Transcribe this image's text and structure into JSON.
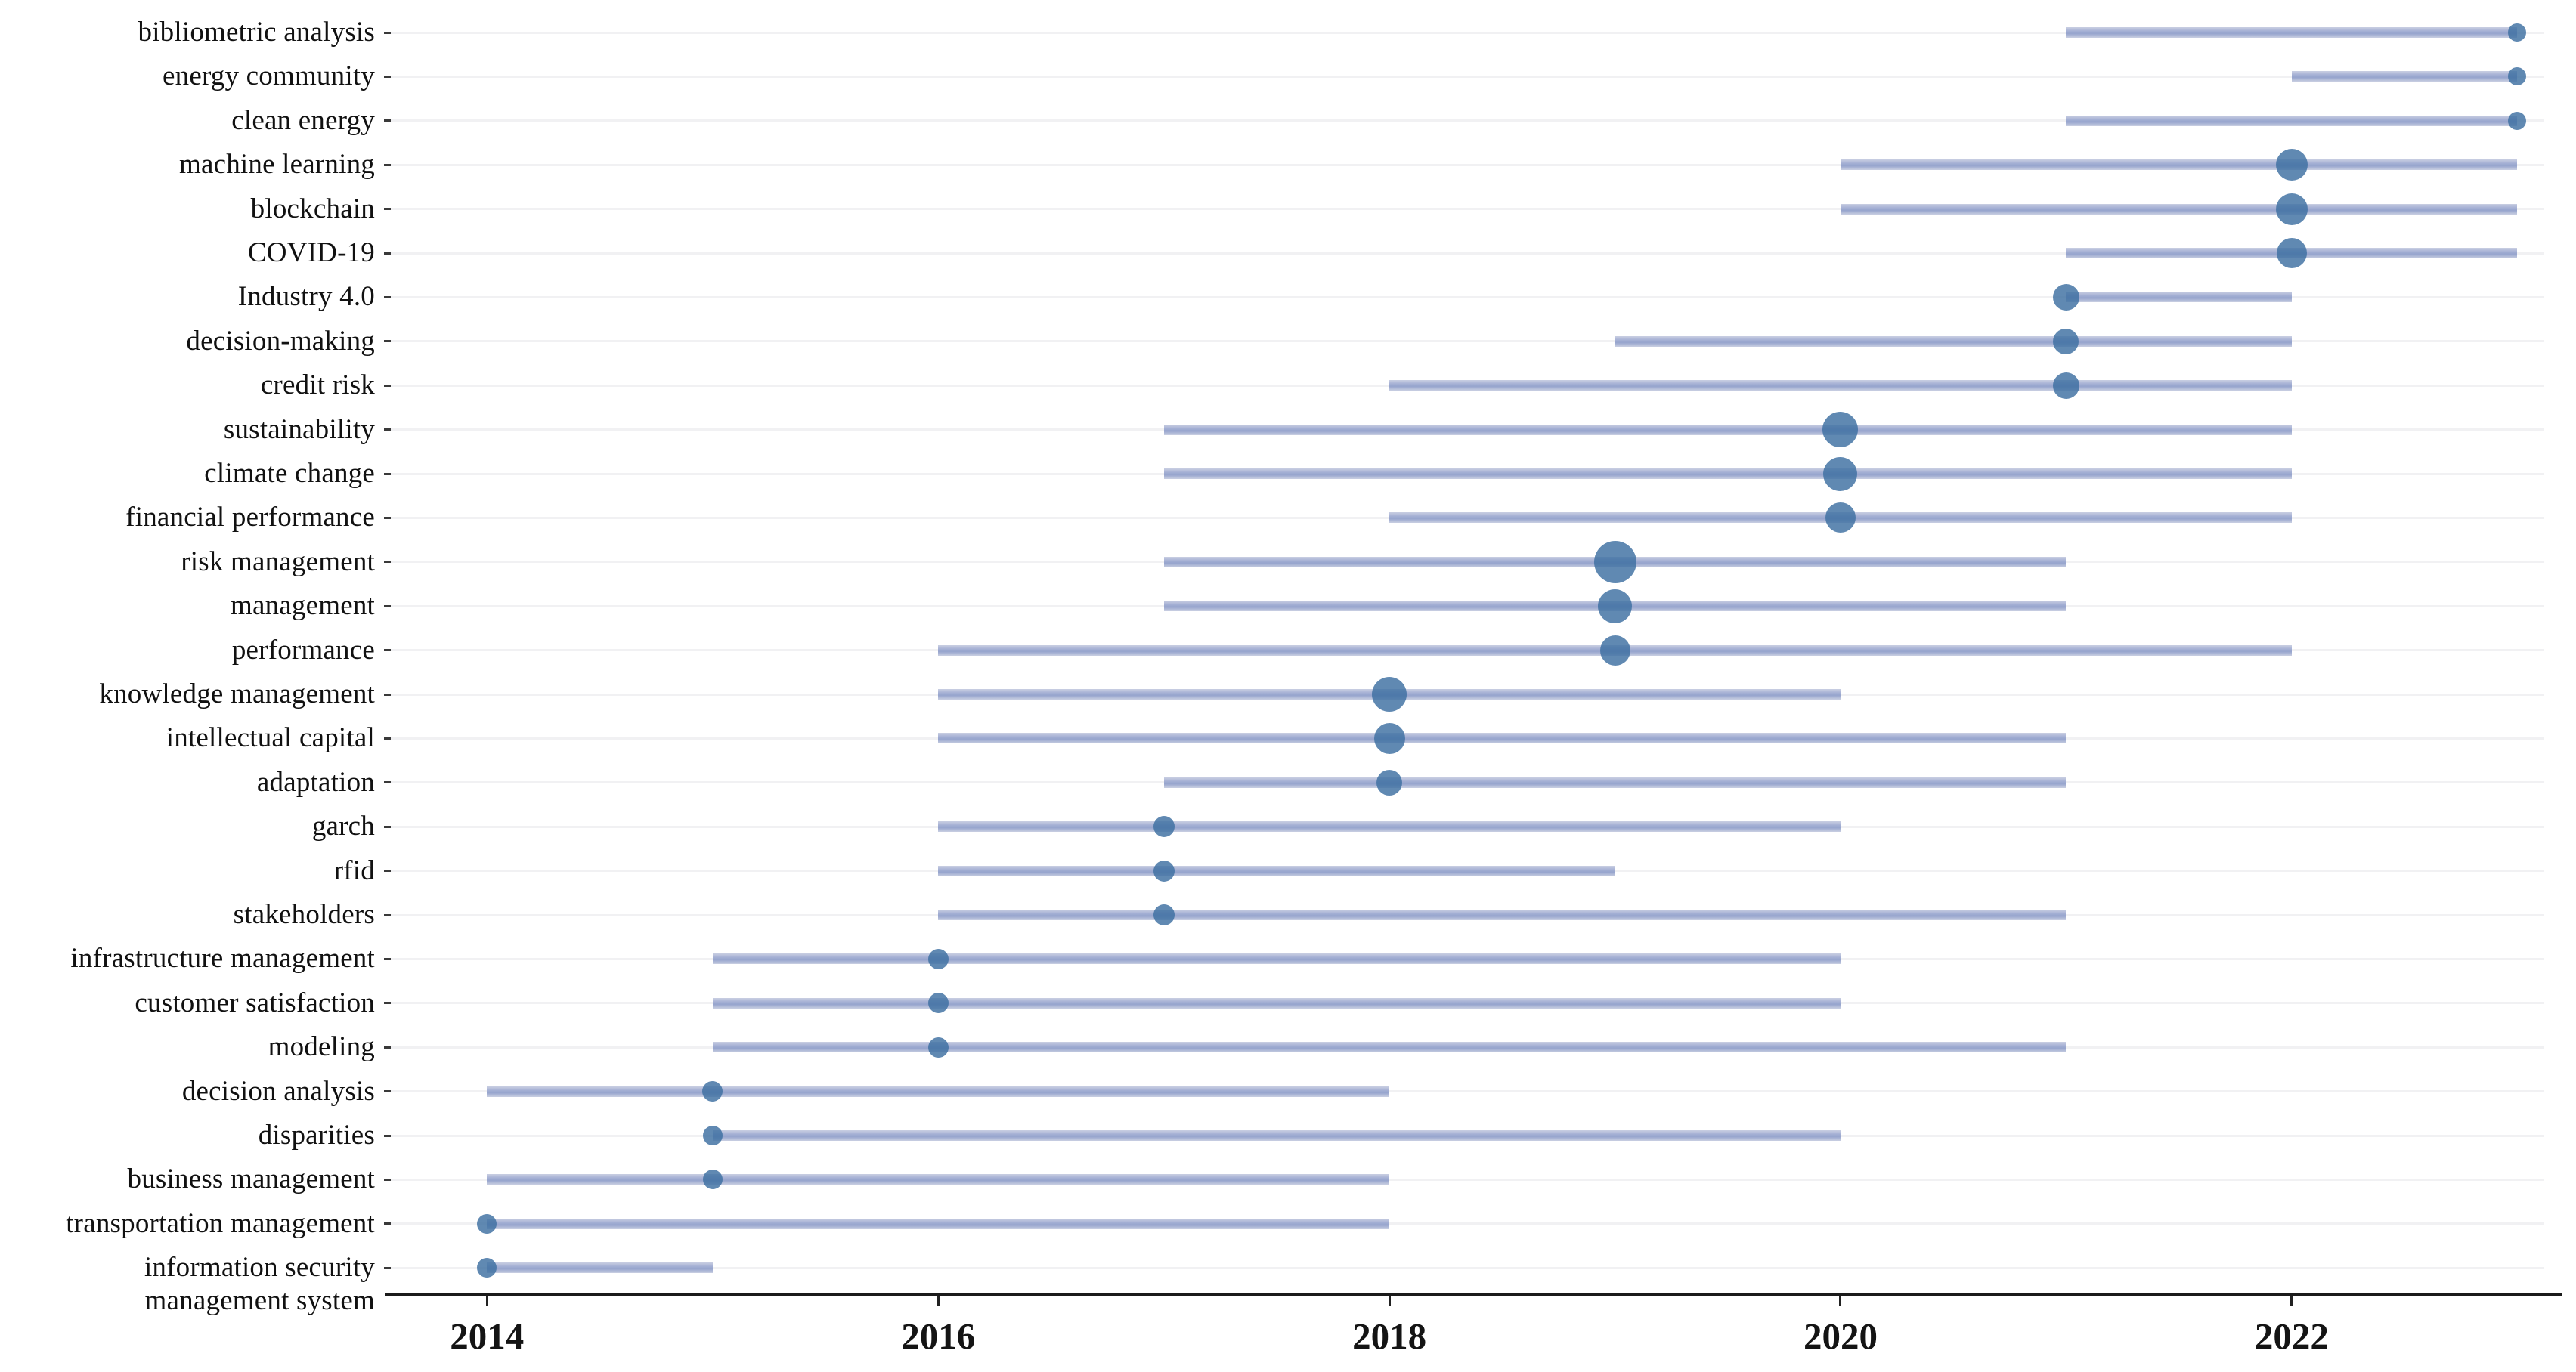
{
  "chart_data": {
    "type": "scatter",
    "variant": "trend-topics-range-dot",
    "title": "",
    "xlabel": "",
    "ylabel": "",
    "grid": "horizontal",
    "legend_position": "none",
    "x_axis": {
      "tick_years": [
        2014,
        2016,
        2018,
        2020,
        2022
      ],
      "domain": [
        2013.55,
        2023.2
      ]
    },
    "colors": {
      "range_bar": "#9fadd2",
      "dot": "#3d6fa1",
      "dot_opacity": "0.82",
      "gridline": "#f1f1f3",
      "axis": "#1b1b1b",
      "text": "#111111"
    },
    "terms": [
      {
        "label": "bibliometric analysis",
        "start": 2021,
        "peak": 2023,
        "end": 2023,
        "size": 24
      },
      {
        "label": "energy community",
        "start": 2022,
        "peak": 2023,
        "end": 2023,
        "size": 24
      },
      {
        "label": "clean energy",
        "start": 2021,
        "peak": 2023,
        "end": 2023,
        "size": 24
      },
      {
        "label": "machine learning",
        "start": 2020,
        "peak": 2022,
        "end": 2023,
        "size": 42
      },
      {
        "label": "blockchain",
        "start": 2020,
        "peak": 2022,
        "end": 2023,
        "size": 42
      },
      {
        "label": "COVID-19",
        "start": 2021,
        "peak": 2022,
        "end": 2023,
        "size": 40
      },
      {
        "label": "Industry 4.0",
        "start": 2021,
        "peak": 2021,
        "end": 2022,
        "size": 35
      },
      {
        "label": "decision-making",
        "start": 2019,
        "peak": 2021,
        "end": 2022,
        "size": 34
      },
      {
        "label": "credit risk",
        "start": 2018,
        "peak": 2021,
        "end": 2022,
        "size": 35
      },
      {
        "label": "sustainability",
        "start": 2017,
        "peak": 2020,
        "end": 2022,
        "size": 47
      },
      {
        "label": "climate change",
        "start": 2017,
        "peak": 2020,
        "end": 2022,
        "size": 45
      },
      {
        "label": "financial performance",
        "start": 2018,
        "peak": 2020,
        "end": 2022,
        "size": 40
      },
      {
        "label": "risk management",
        "start": 2017,
        "peak": 2019,
        "end": 2021,
        "size": 56
      },
      {
        "label": "management",
        "start": 2017,
        "peak": 2019,
        "end": 2021,
        "size": 45
      },
      {
        "label": "performance",
        "start": 2016,
        "peak": 2019,
        "end": 2022,
        "size": 40
      },
      {
        "label": "knowledge management",
        "start": 2016,
        "peak": 2018,
        "end": 2020,
        "size": 46
      },
      {
        "label": "intellectual capital",
        "start": 2016,
        "peak": 2018,
        "end": 2021,
        "size": 41
      },
      {
        "label": "adaptation",
        "start": 2017,
        "peak": 2018,
        "end": 2021,
        "size": 34
      },
      {
        "label": "garch",
        "start": 2016,
        "peak": 2017,
        "end": 2020,
        "size": 28
      },
      {
        "label": "rfid",
        "start": 2016,
        "peak": 2017,
        "end": 2019,
        "size": 28
      },
      {
        "label": "stakeholders",
        "start": 2016,
        "peak": 2017,
        "end": 2021,
        "size": 28
      },
      {
        "label": "infrastructure management",
        "start": 2015,
        "peak": 2016,
        "end": 2020,
        "size": 27
      },
      {
        "label": "customer satisfaction",
        "start": 2015,
        "peak": 2016,
        "end": 2020,
        "size": 27
      },
      {
        "label": "modeling",
        "start": 2015,
        "peak": 2016,
        "end": 2021,
        "size": 27
      },
      {
        "label": "decision analysis",
        "start": 2014,
        "peak": 2015,
        "end": 2018,
        "size": 27
      },
      {
        "label": "disparities",
        "start": 2015,
        "peak": 2015,
        "end": 2020,
        "size": 26
      },
      {
        "label": "business management",
        "start": 2014,
        "peak": 2015,
        "end": 2018,
        "size": 26
      },
      {
        "label": "transportation management",
        "start": 2014,
        "peak": 2014,
        "end": 2018,
        "size": 26
      },
      {
        "label": "information security\nmanagement system",
        "start": 2014,
        "peak": 2014,
        "end": 2015,
        "size": 26
      }
    ]
  }
}
